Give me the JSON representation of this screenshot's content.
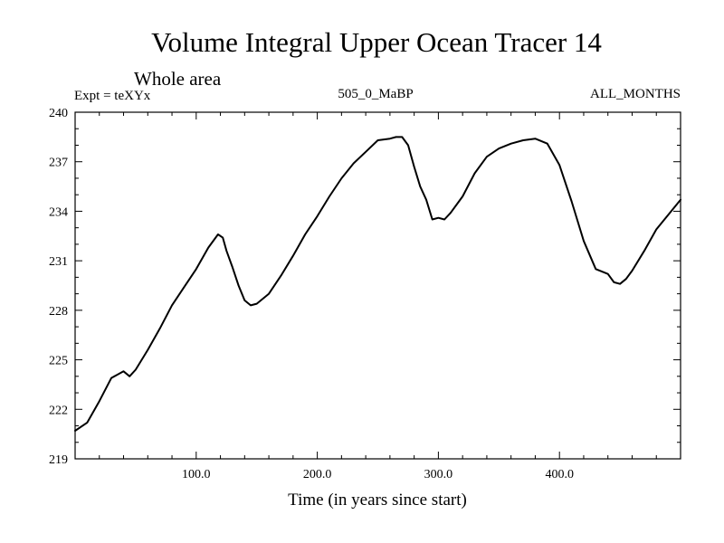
{
  "chart_data": {
    "type": "line",
    "title": "Volume Integral Upper Ocean Tracer 14",
    "subtitle": "Whole area",
    "expt_label": "Expt = teXYx",
    "run_label": "505_0_MaBP",
    "months_label": "ALL_MONTHS",
    "xlabel": "Time (in years since start)",
    "ylabel": "",
    "xlim": [
      0,
      500
    ],
    "ylim": [
      219,
      240
    ],
    "xticks": [
      100,
      200,
      300,
      400
    ],
    "xtick_labels": [
      "100.0",
      "200.0",
      "300.0",
      "400.0"
    ],
    "yticks": [
      219,
      222,
      225,
      228,
      231,
      234,
      237,
      240
    ],
    "ytick_labels": [
      "219",
      "222",
      "225",
      "228",
      "231",
      "234",
      "237",
      "240"
    ],
    "grid": false,
    "line_color": "#000000",
    "series": [
      {
        "x": [
          0,
          10,
          20,
          30,
          40,
          45,
          50,
          60,
          70,
          80,
          90,
          100,
          110,
          118,
          122,
          125,
          130,
          135,
          140,
          145,
          150,
          160,
          170,
          180,
          190,
          200,
          210,
          220,
          230,
          240,
          250,
          260,
          265,
          270,
          275,
          280,
          285,
          290,
          295,
          300,
          305,
          310,
          320,
          330,
          340,
          350,
          360,
          370,
          380,
          390,
          400,
          410,
          420,
          430,
          440,
          445,
          450,
          455,
          460,
          470,
          480,
          490,
          500
        ],
        "y": [
          220.7,
          221.2,
          222.5,
          223.9,
          224.3,
          224.0,
          224.4,
          225.6,
          226.9,
          228.3,
          229.4,
          230.5,
          231.8,
          232.6,
          232.4,
          231.6,
          230.6,
          229.5,
          228.6,
          228.3,
          228.4,
          229.0,
          230.1,
          231.3,
          232.6,
          233.7,
          234.9,
          236.0,
          236.9,
          237.6,
          238.3,
          238.4,
          238.5,
          238.5,
          238.0,
          236.7,
          235.5,
          234.7,
          233.5,
          233.6,
          233.5,
          233.9,
          234.9,
          236.3,
          237.3,
          237.8,
          238.1,
          238.3,
          238.4,
          238.1,
          236.8,
          234.6,
          232.2,
          230.5,
          230.2,
          229.7,
          229.6,
          229.9,
          230.4,
          231.6,
          232.9,
          233.8,
          234.7
        ]
      }
    ]
  }
}
